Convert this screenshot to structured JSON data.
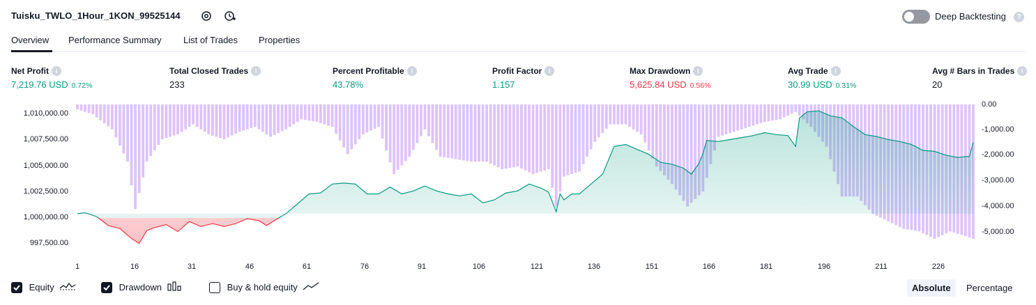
{
  "header": {
    "strategy_name": "Tuisku_TWLO_1Hour_1KON_99525144",
    "deep_backtesting_label": "Deep Backtesting",
    "deep_backtesting_on": false
  },
  "tabs": [
    {
      "label": "Overview",
      "active": true
    },
    {
      "label": "Performance Summary",
      "active": false
    },
    {
      "label": "List of Trades",
      "active": false
    },
    {
      "label": "Properties",
      "active": false
    }
  ],
  "metrics": [
    {
      "label": "Net Profit",
      "value": "7,219.76 USD",
      "pct": "0.72%",
      "tone": "green"
    },
    {
      "label": "Total Closed Trades",
      "value": "233",
      "pct": "",
      "tone": "neutral"
    },
    {
      "label": "Percent Profitable",
      "value": "43.78%",
      "pct": "",
      "tone": "green"
    },
    {
      "label": "Profit Factor",
      "value": "1.157",
      "pct": "",
      "tone": "green"
    },
    {
      "label": "Max Drawdown",
      "value": "5,625.84 USD",
      "pct": "0.56%",
      "tone": "red"
    },
    {
      "label": "Avg Trade",
      "value": "30.99 USD",
      "pct": "0.31%",
      "tone": "green"
    },
    {
      "label": "Avg # Bars in Trades",
      "value": "20",
      "pct": "",
      "tone": "neutral"
    }
  ],
  "legend": {
    "equity": {
      "label": "Equity",
      "checked": true
    },
    "drawdown": {
      "label": "Drawdown",
      "checked": true
    },
    "buy_hold": {
      "label": "Buy & hold equity",
      "checked": false
    }
  },
  "scale_toggle": {
    "absolute": "Absolute",
    "percentage": "Percentage",
    "selected": "Absolute"
  },
  "colors": {
    "equity_up": "#089981",
    "equity_down": "#f23645",
    "drawdown_bar": "#d7b8fb",
    "text": "#131722"
  },
  "chart_data": {
    "type": "area",
    "x_ticks": [
      "1",
      "16",
      "31",
      "46",
      "61",
      "76",
      "91",
      "106",
      "121",
      "136",
      "151",
      "166",
      "181",
      "196",
      "211",
      "226"
    ],
    "y_left_ticks": [
      "1,010,000.00",
      "1,007,500.00",
      "1,005,000.00",
      "1,002,500.00",
      "1,000,000.00",
      "997,500.00"
    ],
    "y_right_ticks": [
      "0.00",
      "-1,000.00",
      "-2,000.00",
      "-3,000.00",
      "-4,000.00",
      "-5,000.00"
    ],
    "xlim": [
      1,
      233
    ],
    "ylim_left": [
      996400,
      1011050
    ],
    "ylim_right": [
      -5850,
      0
    ],
    "baseline": 1000000,
    "series": [
      {
        "name": "Equity",
        "x": [
          1,
          3,
          6,
          9,
          12,
          15,
          17,
          19,
          21,
          24,
          27,
          30,
          33,
          36,
          39,
          42,
          45,
          48,
          50,
          52,
          55,
          58,
          61,
          64,
          67,
          70,
          73,
          76,
          79,
          82,
          85,
          88,
          91,
          94,
          97,
          100,
          103,
          106,
          109,
          112,
          115,
          118,
          121,
          123,
          125,
          126,
          127,
          129,
          131,
          134,
          137,
          140,
          143,
          146,
          149,
          152,
          155,
          158,
          160,
          162,
          163,
          164,
          167,
          170,
          173,
          176,
          179,
          182,
          185,
          187,
          188,
          190,
          193,
          196,
          199,
          202,
          205,
          208,
          211,
          214,
          217,
          220,
          223,
          226,
          229,
          232,
          233
        ],
        "values": [
          1000000,
          1000100,
          999700,
          998800,
          998500,
          997500,
          997000,
          998300,
          998600,
          998900,
          998200,
          999200,
          998700,
          999000,
          998700,
          999000,
          999500,
          999300,
          998800,
          999300,
          1000000,
          1001000,
          1002000,
          1002100,
          1003000,
          1003100,
          1003000,
          1002000,
          1002000,
          1002700,
          1002000,
          1002300,
          1002800,
          1002300,
          1002000,
          1001800,
          1002000,
          1001100,
          1001400,
          1002100,
          1002300,
          1003000,
          1002600,
          1002200,
          1000200,
          1002000,
          1001400,
          1002000,
          1002000,
          1003000,
          1004000,
          1006800,
          1007000,
          1006500,
          1006000,
          1005200,
          1005000,
          1004600,
          1004000,
          1005100,
          1006100,
          1007400,
          1007300,
          1007500,
          1007700,
          1007900,
          1008200,
          1008000,
          1007900,
          1006800,
          1009700,
          1010300,
          1010400,
          1009900,
          1009700,
          1008800,
          1008000,
          1007800,
          1007500,
          1007300,
          1007000,
          1006400,
          1006300,
          1005900,
          1005700,
          1005800,
          1007200
        ]
      },
      {
        "name": "Drawdown",
        "x": [
          1,
          5,
          10,
          14,
          16,
          19,
          23,
          27,
          31,
          35,
          39,
          43,
          47,
          51,
          55,
          59,
          63,
          67,
          71,
          75,
          79,
          83,
          87,
          91,
          95,
          99,
          103,
          107,
          111,
          115,
          119,
          123,
          125,
          127,
          131,
          135,
          139,
          143,
          147,
          151,
          155,
          159,
          163,
          167,
          171,
          175,
          179,
          183,
          187,
          191,
          195,
          199,
          203,
          207,
          211,
          215,
          219,
          223,
          227,
          231,
          233
        ],
        "values": [
          -200,
          -400,
          -1000,
          -2300,
          -4200,
          -2300,
          -1400,
          -1200,
          -800,
          -1200,
          -1400,
          -1100,
          -900,
          -1300,
          -1000,
          -600,
          -700,
          -900,
          -2000,
          -1200,
          -900,
          -2800,
          -2100,
          -1000,
          -2100,
          -2200,
          -2300,
          -2300,
          -2600,
          -2500,
          -2800,
          -2600,
          -4100,
          -2900,
          -2700,
          -1500,
          -800,
          -800,
          -1200,
          -2500,
          -3200,
          -4100,
          -3500,
          -1300,
          -1100,
          -900,
          -700,
          -600,
          -300,
          -900,
          -1700,
          -3700,
          -3700,
          -4400,
          -4700,
          -5000,
          -5100,
          -5400,
          -5100,
          -5300,
          -5400
        ]
      }
    ],
    "xlabel": "",
    "ylabel": ""
  }
}
